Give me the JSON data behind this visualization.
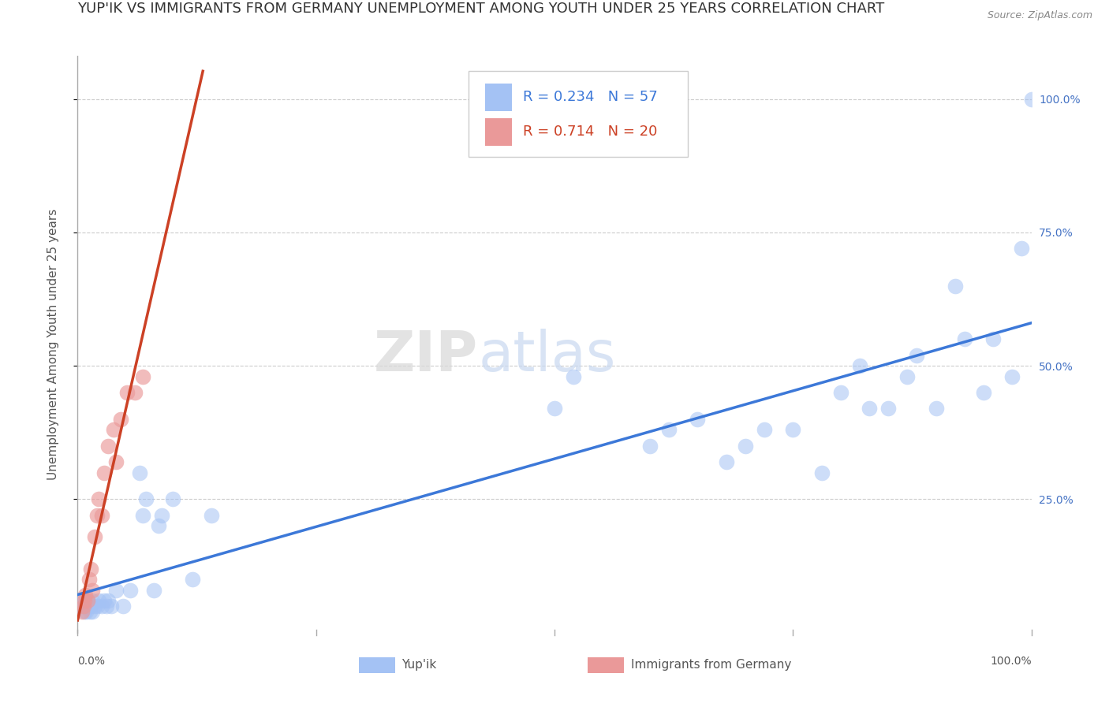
{
  "title": "YUP'IK VS IMMIGRANTS FROM GERMANY UNEMPLOYMENT AMONG YOUTH UNDER 25 YEARS CORRELATION CHART",
  "source": "Source: ZipAtlas.com",
  "ylabel": "Unemployment Among Youth under 25 years",
  "series1_label": "Yup'ik",
  "series2_label": "Immigrants from Germany",
  "series1_R": "0.234",
  "series1_N": "57",
  "series2_R": "0.714",
  "series2_N": "20",
  "series1_color": "#a4c2f4",
  "series2_color": "#ea9999",
  "series1_line_color": "#3c78d8",
  "series2_line_color": "#cc4125",
  "background_color": "#ffffff",
  "grid_color": "#cccccc",
  "ytick_labels": [
    "100.0%",
    "75.0%",
    "50.0%",
    "25.0%"
  ],
  "ytick_values": [
    1.0,
    0.75,
    0.5,
    0.25
  ],
  "xlim": [
    0.0,
    1.0
  ],
  "ylim": [
    0.0,
    1.08
  ],
  "series1_x": [
    0.005,
    0.005,
    0.007,
    0.008,
    0.008,
    0.009,
    0.01,
    0.01,
    0.012,
    0.013,
    0.014,
    0.015,
    0.015,
    0.018,
    0.02,
    0.022,
    0.025,
    0.028,
    0.03,
    0.032,
    0.035,
    0.04,
    0.048,
    0.055,
    0.065,
    0.068,
    0.072,
    0.08,
    0.085,
    0.088,
    0.1,
    0.12,
    0.14,
    0.5,
    0.52,
    0.6,
    0.62,
    0.65,
    0.68,
    0.7,
    0.72,
    0.75,
    0.78,
    0.8,
    0.82,
    0.83,
    0.85,
    0.87,
    0.88,
    0.9,
    0.92,
    0.93,
    0.95,
    0.96,
    0.98,
    0.99,
    1.0
  ],
  "series1_y": [
    0.05,
    0.06,
    0.04,
    0.05,
    0.06,
    0.04,
    0.05,
    0.06,
    0.05,
    0.04,
    0.05,
    0.04,
    0.06,
    0.05,
    0.05,
    0.06,
    0.05,
    0.06,
    0.05,
    0.06,
    0.05,
    0.08,
    0.05,
    0.08,
    0.3,
    0.22,
    0.25,
    0.08,
    0.2,
    0.22,
    0.25,
    0.1,
    0.22,
    0.42,
    0.48,
    0.35,
    0.38,
    0.4,
    0.32,
    0.35,
    0.38,
    0.38,
    0.3,
    0.45,
    0.5,
    0.42,
    0.42,
    0.48,
    0.52,
    0.42,
    0.65,
    0.55,
    0.45,
    0.55,
    0.48,
    0.72,
    1.0
  ],
  "series2_x": [
    0.005,
    0.006,
    0.007,
    0.008,
    0.01,
    0.012,
    0.014,
    0.015,
    0.018,
    0.02,
    0.022,
    0.025,
    0.028,
    0.032,
    0.038,
    0.04,
    0.045,
    0.052,
    0.06,
    0.068
  ],
  "series2_y": [
    0.04,
    0.05,
    0.06,
    0.07,
    0.06,
    0.1,
    0.12,
    0.08,
    0.18,
    0.22,
    0.25,
    0.22,
    0.3,
    0.35,
    0.38,
    0.32,
    0.4,
    0.45,
    0.45,
    0.48
  ],
  "watermark_zip": "ZIP",
  "watermark_atlas": "atlas",
  "title_fontsize": 13,
  "label_fontsize": 11,
  "tick_fontsize": 10,
  "legend_fontsize": 13
}
